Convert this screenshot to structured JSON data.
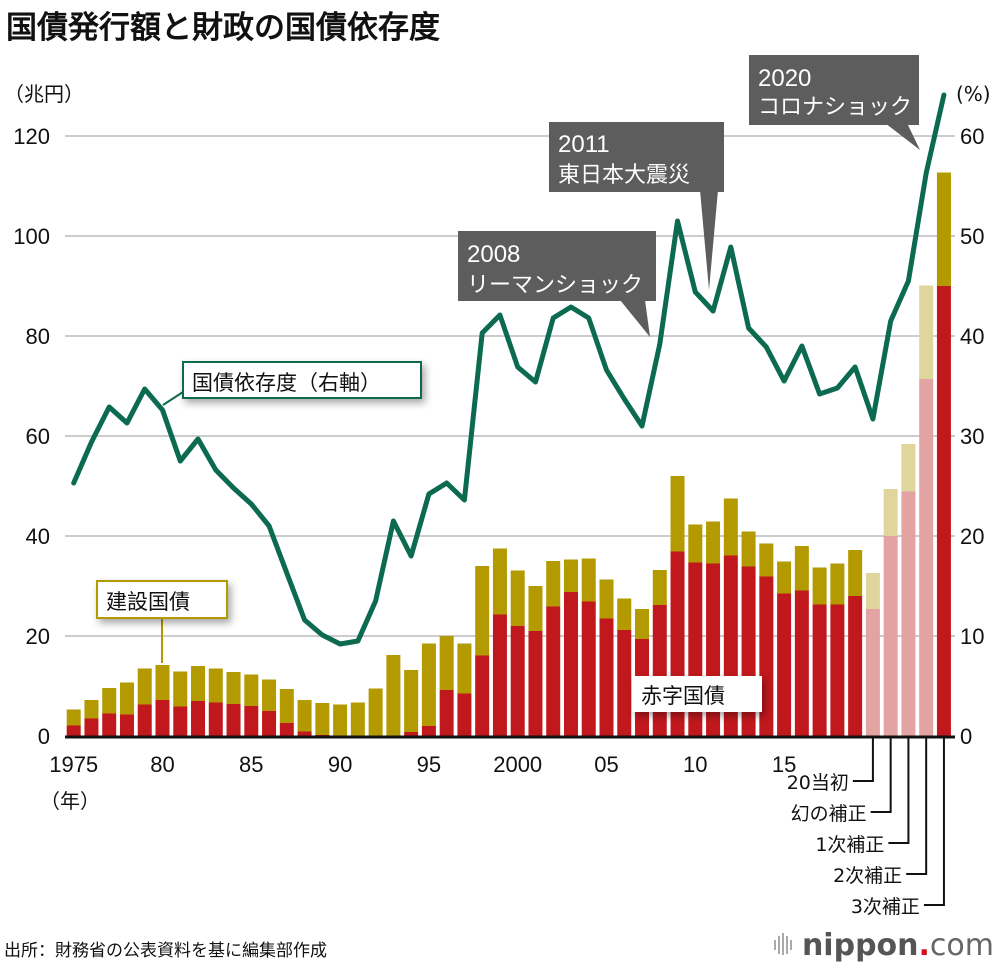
{
  "title": "国債発行額と財政の国債依存度",
  "left_unit": "（兆円）",
  "right_unit": "(%)",
  "x_unit": "（年）",
  "source": "出所：財務省の公表資料を基に編集部作成",
  "logo": {
    "brand": "nippon",
    "dot": ".",
    "tld": "com"
  },
  "colors": {
    "construction": "#b39a00",
    "deficit": "#c0181d",
    "construction_light": "#e0d59c",
    "deficit_light": "#e3a3a3",
    "line": "#0b6a4f",
    "annotation_bg": "#5d5d5d",
    "grid": "#cccccc"
  },
  "labels": {
    "construction": "建設国債",
    "deficit": "赤字国債",
    "line": "国債依存度（右軸）"
  },
  "annotations": [
    {
      "year": "2008",
      "event": "リーマンショック"
    },
    {
      "year": "2011",
      "event": "東日本大震災"
    },
    {
      "year": "2020",
      "event": "コロナショック"
    }
  ],
  "supplement_labels": [
    "20当初",
    "幻の補正",
    "1次補正",
    "2次補正",
    "3次補正"
  ],
  "chart_data": {
    "type": "bar",
    "title": "国債発行額と財政の国債依存度",
    "xlabel": "（年）",
    "ylabel": "（兆円）",
    "y2label": "(%)",
    "ylim": [
      0,
      120
    ],
    "y2lim": [
      0,
      60
    ],
    "yticks": [
      0,
      20,
      40,
      60,
      80,
      100,
      120
    ],
    "y2ticks": [
      0,
      10,
      20,
      30,
      40,
      50,
      60
    ],
    "grid": true,
    "x_tick_labels": [
      {
        "index": 0,
        "label": "1975"
      },
      {
        "index": 5,
        "label": "80"
      },
      {
        "index": 10,
        "label": "85"
      },
      {
        "index": 15,
        "label": "90"
      },
      {
        "index": 20,
        "label": "95"
      },
      {
        "index": 25,
        "label": "2000"
      },
      {
        "index": 30,
        "label": "05"
      },
      {
        "index": 35,
        "label": "10"
      },
      {
        "index": 40,
        "label": "15"
      }
    ],
    "categories": [
      "1975",
      "1976",
      "1977",
      "1978",
      "1979",
      "1980",
      "1981",
      "1982",
      "1983",
      "1984",
      "1985",
      "1986",
      "1987",
      "1988",
      "1989",
      "1990",
      "1991",
      "1992",
      "1993",
      "1994",
      "1995",
      "1996",
      "1997",
      "1998",
      "1999",
      "2000",
      "2001",
      "2002",
      "2003",
      "2004",
      "2005",
      "2006",
      "2007",
      "2008",
      "2009",
      "2010",
      "2011",
      "2012",
      "2013",
      "2014",
      "2015",
      "2016",
      "2017",
      "2018",
      "2019",
      "20当初",
      "幻の補正",
      "1次補正",
      "2次補正",
      "3次補正"
    ],
    "light_from_index": 45,
    "light_until_index": 48,
    "series": [
      {
        "name": "赤字国債",
        "type": "bar",
        "stack": "bond",
        "axis": "left",
        "values": [
          2.1,
          3.5,
          4.5,
          4.3,
          6.3,
          7.2,
          5.9,
          7.0,
          6.7,
          6.4,
          6.0,
          5.0,
          2.6,
          0.9,
          0.2,
          0,
          0,
          0,
          0,
          0.8,
          2.0,
          9.2,
          8.5,
          16.1,
          24.3,
          22.0,
          21.0,
          25.9,
          28.8,
          26.9,
          23.5,
          21.2,
          19.4,
          26.2,
          36.9,
          34.7,
          34.5,
          36.1,
          33.9,
          31.9,
          28.5,
          29.1,
          26.3,
          26.3,
          28.0,
          25.4,
          40.0,
          48.9,
          71.4,
          90.0
        ]
      },
      {
        "name": "建設国債",
        "type": "bar",
        "stack": "bond",
        "axis": "left",
        "values": [
          3.2,
          3.7,
          5.1,
          6.4,
          7.2,
          7.0,
          7.0,
          7.0,
          6.8,
          6.4,
          6.3,
          6.3,
          6.8,
          6.3,
          6.4,
          6.3,
          6.7,
          9.5,
          16.2,
          12.4,
          16.5,
          10.8,
          10.0,
          17.9,
          13.2,
          11.1,
          9.0,
          9.1,
          6.5,
          8.6,
          7.8,
          6.3,
          6.0,
          7.0,
          15.1,
          7.6,
          8.4,
          11.4,
          7.0,
          6.6,
          6.4,
          8.9,
          7.4,
          8.2,
          9.2,
          7.2,
          9.4,
          9.5,
          18.7,
          22.7
        ]
      },
      {
        "name": "国債依存度（右軸）",
        "type": "line",
        "axis": "right",
        "values": [
          25.3,
          29.4,
          32.9,
          31.3,
          34.7,
          32.6,
          27.5,
          29.7,
          26.6,
          24.8,
          23.2,
          21.0,
          16.3,
          11.6,
          10.1,
          9.2,
          9.5,
          13.5,
          21.5,
          18.0,
          24.2,
          25.3,
          23.6,
          40.3,
          42.1,
          36.9,
          35.4,
          41.8,
          42.9,
          41.8,
          36.6,
          33.7,
          31.0,
          39.2,
          51.5,
          44.4,
          42.5,
          48.9,
          40.8,
          38.9,
          35.5,
          39.0,
          34.2,
          34.8,
          36.9,
          31.7,
          41.5,
          45.5,
          56.3,
          64.1
        ]
      }
    ]
  }
}
